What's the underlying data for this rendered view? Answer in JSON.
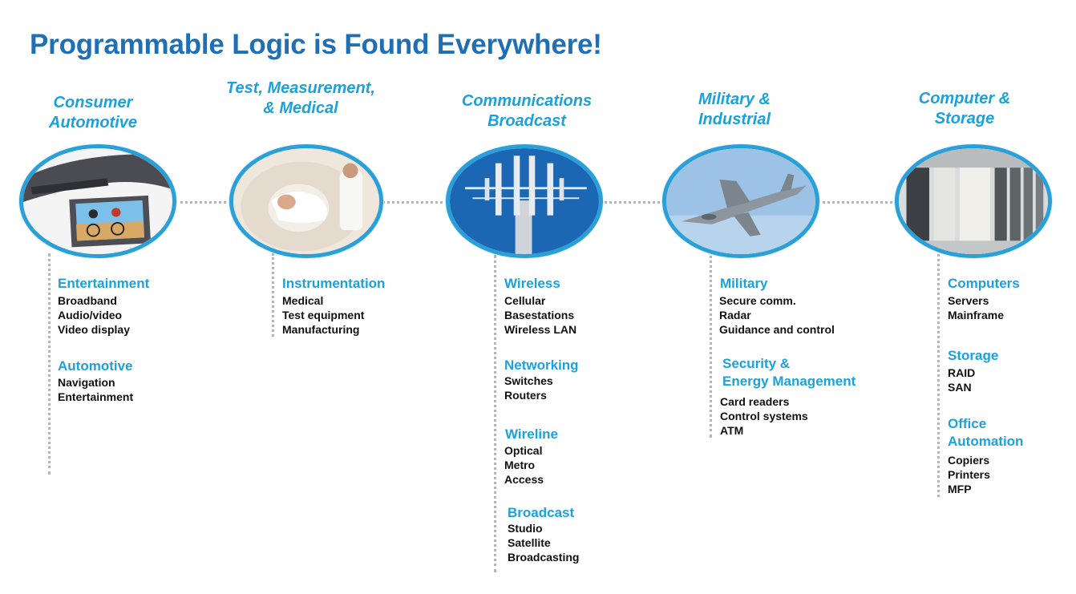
{
  "title": "Programmable Logic is Found Everywhere!",
  "columns": [
    {
      "heading": [
        "Consumer",
        "Automotive"
      ],
      "image": "car-entertainment-display",
      "sections": [
        {
          "title": [
            "Entertainment"
          ],
          "items": [
            "Broadband",
            "Audio/video",
            "Video display"
          ]
        },
        {
          "title": [
            "Automotive"
          ],
          "items": [
            "Navigation",
            "Entertainment"
          ]
        }
      ]
    },
    {
      "heading": [
        "Test, Measurement,",
        "& Medical"
      ],
      "image": "medical-scanner",
      "sections": [
        {
          "title": [
            "Instrumentation"
          ],
          "items": [
            "Medical",
            "Test equipment",
            "Manufacturing"
          ]
        }
      ]
    },
    {
      "heading": [
        "Communications",
        "Broadcast"
      ],
      "image": "cell-tower",
      "sections": [
        {
          "title": [
            "Wireless"
          ],
          "items": [
            "Cellular",
            "Basestations",
            "Wireless LAN"
          ]
        },
        {
          "title": [
            "Networking"
          ],
          "items": [
            "Switches",
            "Routers"
          ]
        },
        {
          "title": [
            "Wireline"
          ],
          "items": [
            "Optical",
            "Metro",
            "Access"
          ]
        },
        {
          "title": [
            "Broadcast"
          ],
          "items": [
            "Studio",
            "Satellite",
            "Broadcasting"
          ]
        }
      ]
    },
    {
      "heading": [
        "Military &",
        "Industrial"
      ],
      "image": "fighter-jet",
      "sections": [
        {
          "title": [
            "Military"
          ],
          "items": [
            "Secure comm.",
            "Radar",
            "Guidance and control"
          ]
        },
        {
          "title": [
            "Security &",
            "Energy Management"
          ],
          "items": [
            "Card readers",
            "Control systems",
            "ATM"
          ]
        }
      ]
    },
    {
      "heading": [
        "Computer &",
        "Storage"
      ],
      "image": "server-room",
      "sections": [
        {
          "title": [
            "Computers"
          ],
          "items": [
            "Servers",
            "Mainframe"
          ]
        },
        {
          "title": [
            "Storage"
          ],
          "items": [
            "RAID",
            "SAN"
          ]
        },
        {
          "title": [
            "Office",
            "Automation"
          ],
          "items": [
            "Copiers",
            "Printers",
            "MFP"
          ]
        }
      ]
    }
  ],
  "colors": {
    "title": "#1f6fb5",
    "accent": "#1ba1dc",
    "ring": "#2a9fd8",
    "connector": "#b5b5b5"
  }
}
